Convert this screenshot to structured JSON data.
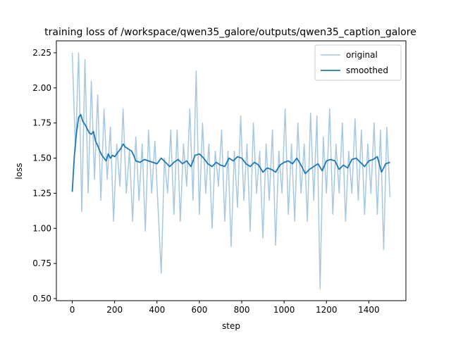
{
  "chart_data": {
    "type": "line",
    "title": "training loss of /workspace/qwen35_galore/outputs/qwen35_caption_galore",
    "xlabel": "step",
    "ylabel": "loss",
    "xlim": [
      -75,
      1575
    ],
    "ylim": [
      0.485,
      2.335
    ],
    "xticks": [
      0,
      200,
      400,
      600,
      800,
      1000,
      1200,
      1400
    ],
    "yticks": [
      0.5,
      0.75,
      1.0,
      1.25,
      1.5,
      1.75,
      2.0,
      2.25
    ],
    "ytick_labels": [
      "0.50",
      "0.75",
      "1.00",
      "1.25",
      "1.50",
      "1.75",
      "2.00",
      "2.25"
    ],
    "grid": false,
    "legend_position": "top-right",
    "series": [
      {
        "name": "original",
        "color": "#a6c8e0",
        "x": [
          0,
          15,
          30,
          45,
          60,
          75,
          90,
          105,
          120,
          135,
          150,
          165,
          180,
          195,
          210,
          225,
          240,
          255,
          270,
          285,
          300,
          315,
          330,
          345,
          360,
          375,
          390,
          405,
          420,
          435,
          450,
          465,
          480,
          495,
          510,
          525,
          540,
          555,
          570,
          585,
          600,
          615,
          630,
          645,
          660,
          675,
          690,
          705,
          720,
          735,
          750,
          765,
          780,
          795,
          810,
          825,
          840,
          855,
          870,
          885,
          900,
          915,
          930,
          945,
          960,
          975,
          990,
          1005,
          1020,
          1035,
          1050,
          1065,
          1080,
          1095,
          1110,
          1125,
          1140,
          1155,
          1170,
          1185,
          1200,
          1215,
          1230,
          1245,
          1260,
          1275,
          1290,
          1305,
          1320,
          1335,
          1350,
          1365,
          1380,
          1395,
          1410,
          1425,
          1440,
          1455,
          1470,
          1485,
          1500
        ],
        "y": [
          2.25,
          1.55,
          2.25,
          1.12,
          2.2,
          1.25,
          2.05,
          1.35,
          1.95,
          1.2,
          1.85,
          1.35,
          1.72,
          1.05,
          1.6,
          1.3,
          1.85,
          1.25,
          1.55,
          1.05,
          1.65,
          1.2,
          1.6,
          0.98,
          1.7,
          1.25,
          1.62,
          1.15,
          0.68,
          1.5,
          1.25,
          1.7,
          1.1,
          1.7,
          1.05,
          1.6,
          1.3,
          1.85,
          1.2,
          2.12,
          1.1,
          1.75,
          1.25,
          1.6,
          1.0,
          1.55,
          1.3,
          1.7,
          1.05,
          1.55,
          0.87,
          1.55,
          1.15,
          1.8,
          1.2,
          1.6,
          0.98,
          1.75,
          1.25,
          1.55,
          0.93,
          1.6,
          1.2,
          1.7,
          0.88,
          1.55,
          1.25,
          1.85,
          1.1,
          1.6,
          1.05,
          1.75,
          1.25,
          1.6,
          1.05,
          1.82,
          1.2,
          1.8,
          0.57,
          1.65,
          1.25,
          1.85,
          1.1,
          1.6,
          1.25,
          1.75,
          1.05,
          1.55,
          1.25,
          1.78,
          1.2,
          1.7,
          1.1,
          1.6,
          1.25,
          1.75,
          1.1,
          1.7,
          0.85,
          1.72,
          1.22
        ]
      },
      {
        "name": "smoothed",
        "color": "#1f77b4",
        "x": [
          0,
          10,
          20,
          30,
          40,
          50,
          60,
          70,
          80,
          90,
          100,
          110,
          120,
          130,
          140,
          150,
          160,
          170,
          180,
          190,
          200,
          210,
          220,
          230,
          240,
          250,
          260,
          270,
          280,
          290,
          300,
          320,
          340,
          360,
          380,
          400,
          420,
          440,
          460,
          480,
          500,
          520,
          540,
          560,
          580,
          600,
          620,
          640,
          660,
          680,
          700,
          720,
          740,
          760,
          780,
          800,
          820,
          840,
          860,
          880,
          900,
          920,
          940,
          960,
          980,
          1000,
          1020,
          1040,
          1060,
          1080,
          1100,
          1120,
          1140,
          1160,
          1180,
          1200,
          1220,
          1240,
          1260,
          1280,
          1300,
          1320,
          1340,
          1360,
          1380,
          1400,
          1420,
          1440,
          1460,
          1480,
          1500
        ],
        "y": [
          1.26,
          1.52,
          1.68,
          1.79,
          1.81,
          1.76,
          1.74,
          1.71,
          1.68,
          1.67,
          1.69,
          1.62,
          1.59,
          1.55,
          1.52,
          1.5,
          1.48,
          1.53,
          1.5,
          1.52,
          1.51,
          1.53,
          1.55,
          1.57,
          1.6,
          1.58,
          1.57,
          1.56,
          1.55,
          1.52,
          1.48,
          1.47,
          1.49,
          1.48,
          1.47,
          1.46,
          1.5,
          1.47,
          1.44,
          1.47,
          1.49,
          1.46,
          1.48,
          1.44,
          1.52,
          1.53,
          1.5,
          1.46,
          1.44,
          1.47,
          1.45,
          1.44,
          1.5,
          1.48,
          1.51,
          1.5,
          1.46,
          1.44,
          1.47,
          1.45,
          1.4,
          1.43,
          1.42,
          1.4,
          1.45,
          1.47,
          1.48,
          1.46,
          1.5,
          1.45,
          1.39,
          1.42,
          1.44,
          1.46,
          1.41,
          1.48,
          1.49,
          1.48,
          1.42,
          1.45,
          1.43,
          1.49,
          1.5,
          1.47,
          1.44,
          1.48,
          1.49,
          1.51,
          1.4,
          1.46,
          1.47
        ]
      }
    ]
  }
}
